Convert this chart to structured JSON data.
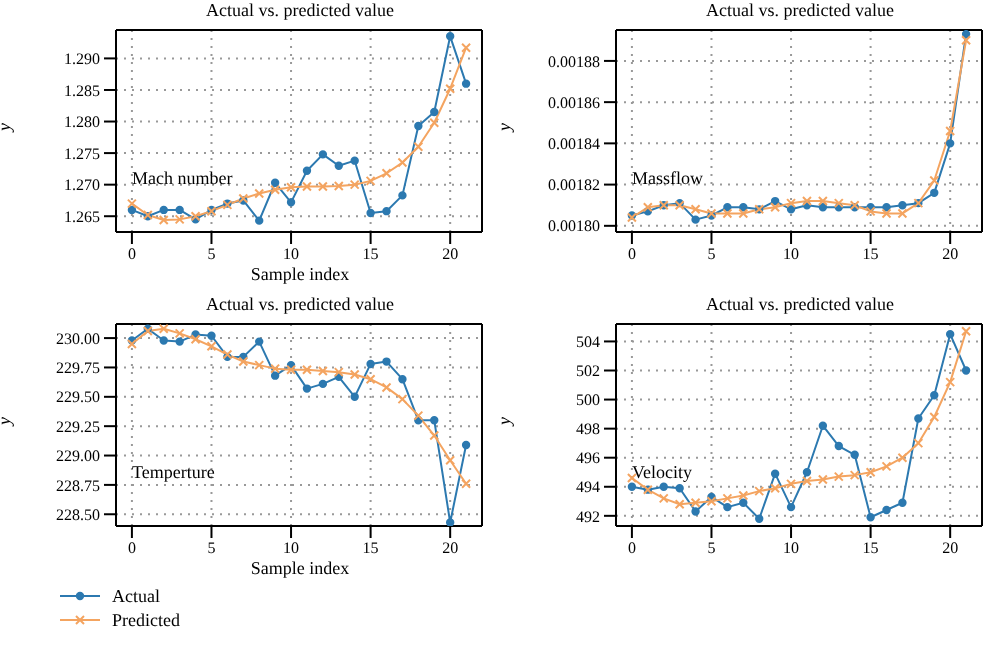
{
  "chart_data": [
    {
      "type": "line",
      "title": "Actual vs. predicted value",
      "xlabel": "Sample index",
      "ylabel": "y",
      "annotations": [
        "Mach number"
      ],
      "x": [
        0,
        1,
        2,
        3,
        4,
        5,
        6,
        7,
        8,
        9,
        10,
        11,
        12,
        13,
        14,
        15,
        16,
        17,
        18,
        19,
        20,
        21
      ],
      "xlim": [
        -1,
        22
      ],
      "xticks": [
        0,
        5,
        10,
        15,
        20
      ],
      "ylim": [
        1.2625,
        1.2945
      ],
      "yticks": [
        {
          "value": 1.265,
          "label": "1.265"
        },
        {
          "value": 1.27,
          "label": "1.270"
        },
        {
          "value": 1.275,
          "label": "1.275"
        },
        {
          "value": 1.28,
          "label": "1.280"
        },
        {
          "value": 1.285,
          "label": "1.285"
        },
        {
          "value": 1.29,
          "label": "1.290"
        }
      ],
      "grid": true,
      "series": [
        {
          "color": "#2c79b0",
          "marker": "circle",
          "values": [
            1.266,
            1.265,
            1.266,
            1.266,
            1.2645,
            1.266,
            1.267,
            1.2675,
            1.2643,
            1.2703,
            1.2672,
            1.2722,
            1.2748,
            1.273,
            1.2738,
            1.2655,
            1.2658,
            1.2683,
            1.2793,
            1.2815,
            1.2935,
            1.286
          ]
        },
        {
          "color": "#f4a460",
          "marker": "cross",
          "values": [
            1.267,
            1.2652,
            1.2644,
            1.2645,
            1.265,
            1.2658,
            1.2668,
            1.2678,
            1.2686,
            1.2692,
            1.2696,
            1.2697,
            1.2697,
            1.2698,
            1.27,
            1.2706,
            1.2718,
            1.2735,
            1.276,
            1.2798,
            1.2852,
            1.2917
          ]
        }
      ]
    },
    {
      "type": "line",
      "title": "Actual vs. predicted value",
      "ylabel": "y",
      "annotations": [
        "Massflow"
      ],
      "x": [
        0,
        1,
        2,
        3,
        4,
        5,
        6,
        7,
        8,
        9,
        10,
        11,
        12,
        13,
        14,
        15,
        16,
        17,
        18,
        19,
        20,
        21
      ],
      "xlim": [
        -1,
        22
      ],
      "xticks": [
        0,
        5,
        10,
        15,
        20
      ],
      "ylim": [
        0.001797,
        0.001895
      ],
      "yticks": [
        {
          "value": 0.0018,
          "label": "0.00180"
        },
        {
          "value": 0.00182,
          "label": "0.00182"
        },
        {
          "value": 0.00184,
          "label": "0.00184"
        },
        {
          "value": 0.00186,
          "label": "0.00186"
        },
        {
          "value": 0.00188,
          "label": "0.00188"
        }
      ],
      "grid": true,
      "series": [
        {
          "color": "#2c79b0",
          "marker": "circle",
          "values": [
            0.001805,
            0.001807,
            0.00181,
            0.001811,
            0.001803,
            0.001805,
            0.001809,
            0.001809,
            0.001808,
            0.001812,
            0.001808,
            0.00181,
            0.001809,
            0.001809,
            0.001809,
            0.001809,
            0.001809,
            0.00181,
            0.001811,
            0.001816,
            0.00184,
            0.001893
          ]
        },
        {
          "color": "#f4a460",
          "marker": "cross",
          "values": [
            0.001804,
            0.001809,
            0.00181,
            0.00181,
            0.001808,
            0.001806,
            0.001806,
            0.001806,
            0.001808,
            0.001809,
            0.001811,
            0.001812,
            0.001812,
            0.001811,
            0.00181,
            0.001807,
            0.001806,
            0.001806,
            0.001811,
            0.001822,
            0.001846,
            0.00189
          ]
        }
      ]
    },
    {
      "type": "line",
      "title": "Actual vs. predicted value",
      "xlabel": "Sample index",
      "ylabel": "y",
      "annotations": [
        "Temperture"
      ],
      "legend": "bottom left",
      "x": [
        0,
        1,
        2,
        3,
        4,
        5,
        6,
        7,
        8,
        9,
        10,
        11,
        12,
        13,
        14,
        15,
        16,
        17,
        18,
        19,
        20,
        21
      ],
      "xlim": [
        -1,
        22
      ],
      "xticks": [
        0,
        5,
        10,
        15,
        20
      ],
      "ylim": [
        228.4,
        230.12
      ],
      "yticks": [
        {
          "value": 228.5,
          "label": "228.50"
        },
        {
          "value": 228.75,
          "label": "228.75"
        },
        {
          "value": 229,
          "label": "229.00"
        },
        {
          "value": 229.25,
          "label": "229.25"
        },
        {
          "value": 229.5,
          "label": "229.50"
        },
        {
          "value": 229.75,
          "label": "229.75"
        },
        {
          "value": 230,
          "label": "230.00"
        }
      ],
      "grid": true,
      "series": [
        {
          "name": "Actual",
          "color": "#2c79b0",
          "marker": "circle",
          "values": [
            229.98,
            230.08,
            229.98,
            229.97,
            230.03,
            230.02,
            229.84,
            229.84,
            229.97,
            229.68,
            229.77,
            229.57,
            229.61,
            229.67,
            229.5,
            229.78,
            229.8,
            229.65,
            229.3,
            229.3,
            228.43,
            229.09
          ]
        },
        {
          "name": "Predicted",
          "color": "#f4a460",
          "marker": "cross",
          "values": [
            229.95,
            230.06,
            230.08,
            230.04,
            229.99,
            229.93,
            229.86,
            229.8,
            229.77,
            229.74,
            229.73,
            229.73,
            229.72,
            229.71,
            229.69,
            229.65,
            229.58,
            229.48,
            229.34,
            229.17,
            228.96,
            228.76
          ]
        }
      ]
    },
    {
      "type": "line",
      "title": "Actual vs. predicted value",
      "ylabel": "y",
      "annotations": [
        "Velocity"
      ],
      "x": [
        0,
        1,
        2,
        3,
        4,
        5,
        6,
        7,
        8,
        9,
        10,
        11,
        12,
        13,
        14,
        15,
        16,
        17,
        18,
        19,
        20,
        21
      ],
      "xlim": [
        -1,
        22
      ],
      "xticks": [
        0,
        5,
        10,
        15,
        20
      ],
      "ylim": [
        491.3,
        505.2
      ],
      "yticks": [
        492,
        494,
        496,
        498,
        500,
        502,
        504
      ],
      "grid": true,
      "series": [
        {
          "color": "#2c79b0",
          "marker": "circle",
          "values": [
            494,
            493.8,
            494,
            493.9,
            492.3,
            493.3,
            492.6,
            492.9,
            491.8,
            494.9,
            492.6,
            495,
            498.2,
            496.8,
            496.2,
            491.9,
            492.4,
            492.9,
            498.7,
            500.3,
            504.5,
            502
          ]
        },
        {
          "color": "#f4a460",
          "marker": "cross",
          "values": [
            494.6,
            493.8,
            493.2,
            492.8,
            492.9,
            493,
            493.2,
            493.4,
            493.7,
            493.9,
            494.2,
            494.4,
            494.5,
            494.7,
            494.8,
            495,
            495.4,
            496,
            497,
            498.8,
            501.2,
            504.7
          ]
        }
      ]
    }
  ]
}
